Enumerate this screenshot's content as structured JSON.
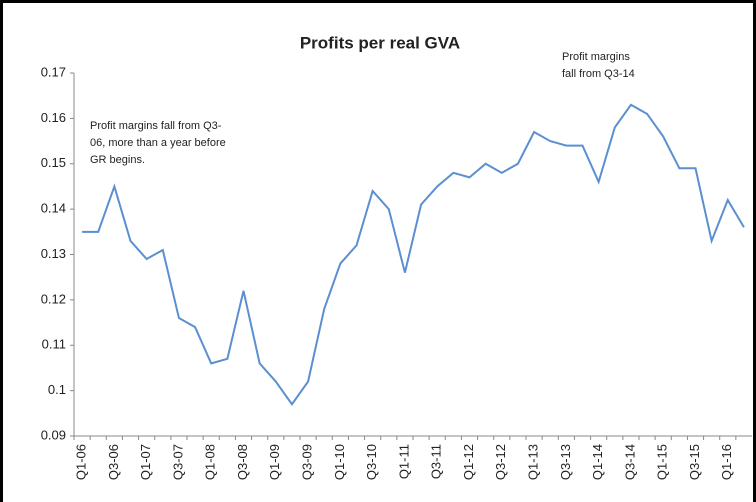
{
  "chart_data": {
    "type": "line",
    "title": "Profits per real GVA",
    "categories": [
      "Q1-06",
      null,
      "Q3-06",
      null,
      "Q1-07",
      null,
      "Q3-07",
      null,
      "Q1-08",
      null,
      "Q3-08",
      null,
      "Q1-09",
      null,
      "Q3-09",
      null,
      "Q1-10",
      null,
      "Q3-10",
      null,
      "Q1-11",
      null,
      "Q3-11",
      null,
      "Q1-12",
      null,
      "Q3-12",
      null,
      "Q1-13",
      null,
      "Q3-13",
      null,
      "Q1-14",
      null,
      "Q3-14",
      null,
      "Q1-15",
      null,
      "Q3-15",
      null,
      "Q1-16",
      null
    ],
    "series": [
      {
        "color": "#5b8fd0",
        "values": [
          0.135,
          0.135,
          0.145,
          0.133,
          0.129,
          0.131,
          0.116,
          0.114,
          0.106,
          0.107,
          0.122,
          0.106,
          0.102,
          0.097,
          0.102,
          0.118,
          0.128,
          0.132,
          0.144,
          0.14,
          0.126,
          0.141,
          0.145,
          0.148,
          0.147,
          0.15,
          0.148,
          0.15,
          0.157,
          0.155,
          0.154,
          0.154,
          0.146,
          0.158,
          0.163,
          0.161,
          0.156,
          0.149,
          0.149,
          0.133,
          0.142,
          0.136
        ]
      }
    ],
    "ylim": [
      0.09,
      0.17
    ],
    "yticks": [
      0.09,
      0.1,
      0.11,
      0.12,
      0.13,
      0.14,
      0.15,
      0.16,
      0.17
    ],
    "grid": false,
    "annotations": [
      {
        "lines": [
          "Profit margins fall from Q3-",
          "06, more than a year before",
          "GR begins."
        ]
      },
      {
        "lines": [
          "Profit margins",
          "fall from Q3-14"
        ]
      }
    ]
  }
}
